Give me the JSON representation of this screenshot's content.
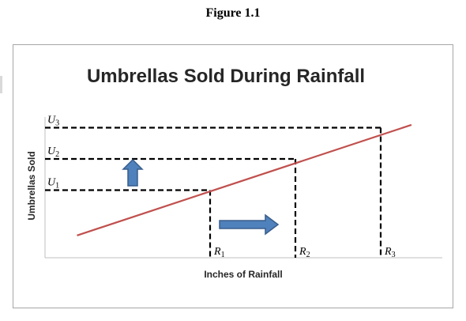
{
  "figure_label": "Figure 1.1",
  "colors": {
    "trend_line": "#c0504d",
    "arrow_fill": "#4f81bd",
    "arrow_stroke": "#385d8a"
  },
  "chart_data": {
    "type": "line",
    "title": "Umbrellas Sold During Rainfall",
    "xlabel": "Inches of Rainfall",
    "ylabel": "Umbrellas Sold",
    "grid": false,
    "legend": "none",
    "x_ticks": [
      {
        "label": "R",
        "sub": "1",
        "value": 1
      },
      {
        "label": "R",
        "sub": "2",
        "value": 2
      },
      {
        "label": "R",
        "sub": "3",
        "value": 3
      }
    ],
    "y_ticks": [
      {
        "label": "U",
        "sub": "1",
        "value": 1
      },
      {
        "label": "U",
        "sub": "2",
        "value": 2
      },
      {
        "label": "U",
        "sub": "3",
        "value": 3
      }
    ],
    "series": [
      {
        "values": [
          {
            "x": -0.56,
            "y": -0.45
          },
          {
            "x": 3.36,
            "y": 3.09
          }
        ]
      }
    ],
    "points": [
      {
        "x": 1,
        "y": 1
      },
      {
        "x": 2,
        "y": 2
      },
      {
        "x": 3,
        "y": 3
      }
    ],
    "annotations": [
      {
        "type": "arrow",
        "direction": "up",
        "meaning": "umbrellas sold increase"
      },
      {
        "type": "arrow",
        "direction": "right",
        "meaning": "rainfall increases"
      }
    ]
  }
}
